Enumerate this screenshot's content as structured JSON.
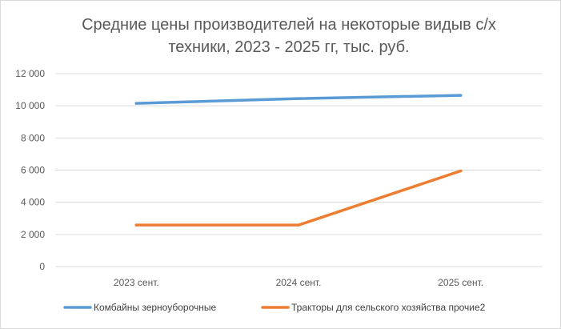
{
  "chart_data": {
    "type": "line",
    "title": "Средние цены производителей на некоторые видыв с/х\nтехники,  2023 - 2025 гг, тыс. руб.",
    "categories": [
      "2023 сент.",
      "2024 сент.",
      "2025 сент."
    ],
    "series": [
      {
        "name": "Комбайны зерноуборочные",
        "values": [
          10150,
          10450,
          10650
        ],
        "color": "#5b9bd5"
      },
      {
        "name": "Тракторы для сельского хозяйства прочие2",
        "values": [
          2580,
          2580,
          5950
        ],
        "color": "#ed7d31"
      }
    ],
    "yticks": [
      "0",
      "2 000",
      "4 000",
      "6 000",
      "8 000",
      "10 000",
      "12 000"
    ],
    "ylim": [
      0,
      12000
    ],
    "grid": true,
    "legend_position": "bottom"
  }
}
